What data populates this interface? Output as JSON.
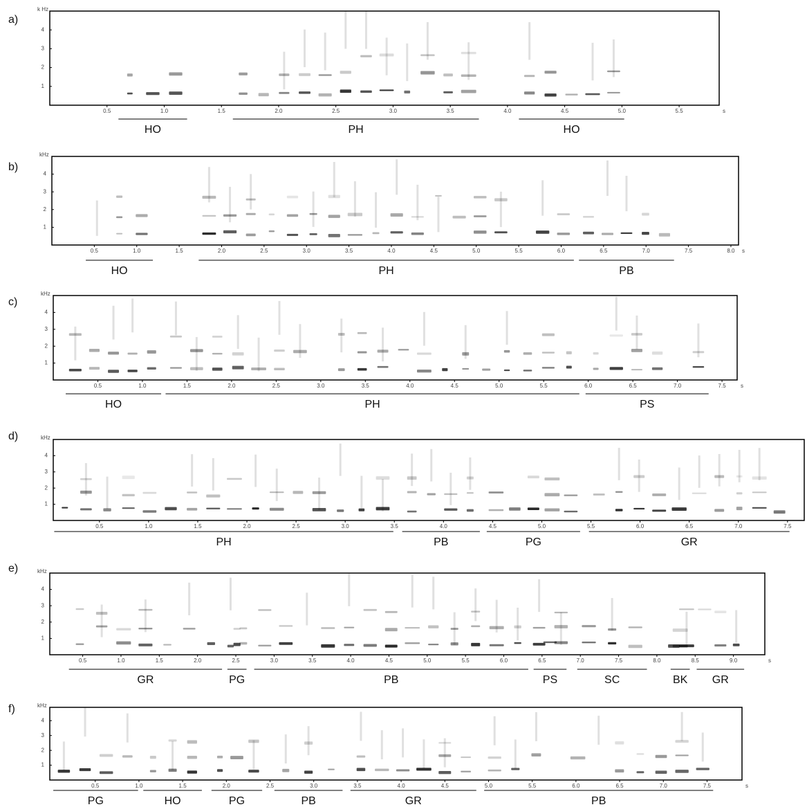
{
  "panels": [
    {
      "label": "a)",
      "y_unit": "k Hz",
      "x_unit": "s",
      "ylim": [
        0,
        5
      ],
      "yticks": [
        1,
        2,
        3,
        4
      ],
      "xlim": [
        0,
        5.85
      ],
      "xticks": [
        0.5,
        {
          "value": 1,
          "label": "1.0"
        },
        1.5,
        {
          "value": 2,
          "label": "2.0"
        },
        2.5,
        {
          "value": 3,
          "label": "3.0"
        },
        3.5,
        {
          "value": 4,
          "label": "4.0"
        },
        4.5,
        {
          "value": 5,
          "label": "5.0"
        },
        5.5
      ],
      "segments": [
        {
          "label": "HO",
          "start": 0.6,
          "end": 1.2
        },
        {
          "label": "PH",
          "start": 1.6,
          "end": 3.75
        },
        {
          "label": "HO",
          "start": 4.1,
          "end": 5.02
        }
      ]
    },
    {
      "label": "b)",
      "y_unit": "kHz",
      "x_unit": "s",
      "ylim": [
        0,
        5
      ],
      "yticks": [
        1,
        2,
        3,
        4
      ],
      "xlim": [
        0,
        8.09
      ],
      "xticks": [
        0.5,
        {
          "value": 1,
          "label": "1.0"
        },
        1.5,
        {
          "value": 2,
          "label": "2.0"
        },
        2.5,
        {
          "value": 3,
          "label": "3.0"
        },
        3.5,
        {
          "value": 4,
          "label": "4.0"
        },
        4.5,
        {
          "value": 5,
          "label": "5.0"
        },
        5.5,
        {
          "value": 6,
          "label": "6.0"
        },
        6.5,
        {
          "value": 7,
          "label": "7.0"
        },
        7.5,
        {
          "value": 8,
          "label": "8.0"
        }
      ],
      "segments": [
        {
          "label": "HO",
          "start": 0.4,
          "end": 1.19
        },
        {
          "label": "PH",
          "start": 1.73,
          "end": 6.15
        },
        {
          "label": "PB",
          "start": 6.21,
          "end": 7.33
        }
      ]
    },
    {
      "label": "c)",
      "y_unit": "kHz",
      "x_unit": "s",
      "ylim": [
        0,
        5
      ],
      "yticks": [
        1,
        2,
        3,
        4
      ],
      "xlim": [
        0,
        7.67
      ],
      "xticks": [
        0.5,
        {
          "value": 1,
          "label": "1.0"
        },
        1.5,
        {
          "value": 2,
          "label": "2.0"
        },
        2.5,
        {
          "value": 3,
          "label": "3.0"
        },
        3.5,
        {
          "value": 4,
          "label": "4.0"
        },
        4.5,
        {
          "value": 5,
          "label": "5.0"
        },
        5.5,
        {
          "value": 6,
          "label": "6.0"
        },
        6.5,
        {
          "value": 7,
          "label": "7.0"
        },
        7.5
      ],
      "segments": [
        {
          "label": "HO",
          "start": 0.14,
          "end": 1.21
        },
        {
          "label": "PH",
          "start": 1.26,
          "end": 5.9
        },
        {
          "label": "PS",
          "start": 5.97,
          "end": 7.35
        }
      ]
    },
    {
      "label": "d)",
      "y_unit": "kHz",
      "ylim": [
        0,
        5
      ],
      "yticks": [
        1,
        2,
        3,
        4
      ],
      "xlim": [
        0.03,
        7.67
      ],
      "xticks": [
        0.5,
        {
          "value": 1,
          "label": "1.0"
        },
        1.5,
        {
          "value": 2,
          "label": "2.0"
        },
        2.5,
        {
          "value": 3,
          "label": "3.0"
        },
        3.5,
        {
          "value": 4,
          "label": "4.0"
        },
        4.5,
        {
          "value": 5,
          "label": "5.0"
        },
        5.5,
        {
          "value": 6,
          "label": "6.0"
        },
        6.5,
        {
          "value": 7,
          "label": "7.0"
        },
        7.5
      ],
      "segments": [
        {
          "label": "PH",
          "start": 0.04,
          "end": 3.49
        },
        {
          "label": "PB",
          "start": 3.58,
          "end": 4.37
        },
        {
          "label": "PG",
          "start": 4.44,
          "end": 5.39
        },
        {
          "label": "GR",
          "start": 5.48,
          "end": 7.52
        }
      ]
    },
    {
      "label": "e)",
      "y_unit": "kHz",
      "x_unit": "s",
      "ylim": [
        0,
        5
      ],
      "yticks": [
        1,
        2,
        3,
        4
      ],
      "xlim": [
        0.07,
        9.41
      ],
      "xticks": [
        0.5,
        {
          "value": 1,
          "label": "1.0"
        },
        1.5,
        {
          "value": 2,
          "label": "2.0"
        },
        2.5,
        {
          "value": 3,
          "label": "3.0"
        },
        3.5,
        {
          "value": 4,
          "label": "4.0"
        },
        4.5,
        {
          "value": 5,
          "label": "5.0"
        },
        5.5,
        {
          "value": 6,
          "label": "6.0"
        },
        6.5,
        {
          "value": 7,
          "label": "7.0"
        },
        7.5,
        {
          "value": 8,
          "label": "8.0"
        },
        8.5,
        {
          "value": 9,
          "label": "9.0"
        }
      ],
      "segments": [
        {
          "label": "GR",
          "start": 0.32,
          "end": 2.32
        },
        {
          "label": "PG",
          "start": 2.39,
          "end": 2.64
        },
        {
          "label": "PB",
          "start": 2.74,
          "end": 6.32
        },
        {
          "label": "PS",
          "start": 6.39,
          "end": 6.82
        },
        {
          "label": "SC",
          "start": 6.96,
          "end": 7.87
        },
        {
          "label": "BK",
          "start": 8.18,
          "end": 8.43
        },
        {
          "label": "GR",
          "start": 8.52,
          "end": 9.14
        }
      ]
    },
    {
      "label": "f)",
      "y_unit": "kHz",
      "x_unit": "s",
      "ylim": [
        0,
        4.9
      ],
      "yticks": [
        1,
        2,
        3,
        4
      ],
      "xlim": [
        -0.02,
        7.9
      ],
      "xticks": [
        0.5,
        {
          "value": 1,
          "label": "1.0"
        },
        1.5,
        {
          "value": 2,
          "label": "2.0"
        },
        2.5,
        {
          "value": 3,
          "label": "3.0"
        },
        3.5,
        {
          "value": 4,
          "label": "4.0"
        },
        4.5,
        {
          "value": 5,
          "label": "5.0"
        },
        5.5,
        {
          "value": 6,
          "label": "6.0"
        },
        6.5,
        {
          "value": 7,
          "label": "7.0"
        },
        7.5
      ],
      "segments": [
        {
          "label": "PG",
          "start": 0.02,
          "end": 0.99
        },
        {
          "label": "HO",
          "start": 1.05,
          "end": 1.72
        },
        {
          "label": "PG",
          "start": 1.83,
          "end": 2.41
        },
        {
          "label": "PB",
          "start": 2.55,
          "end": 3.33
        },
        {
          "label": "GR",
          "start": 3.42,
          "end": 4.86
        },
        {
          "label": "PB",
          "start": 4.95,
          "end": 7.57
        }
      ]
    }
  ]
}
